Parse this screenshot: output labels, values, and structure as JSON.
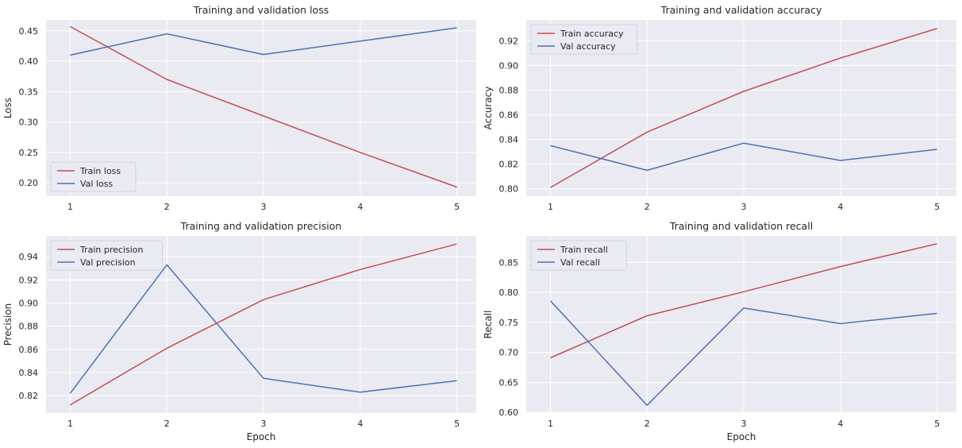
{
  "figure": {
    "colors": {
      "train": "#c44e52",
      "val": "#4c72b0",
      "panel_bg": "#eaeaf2",
      "grid": "#ffffff"
    }
  },
  "chart_data": [
    {
      "type": "line",
      "title": "Training and validation loss",
      "xlabel": "",
      "ylabel": "Loss",
      "x": [
        1,
        2,
        3,
        4,
        5
      ],
      "xticks": [
        "1",
        "2",
        "3",
        "4",
        "5"
      ],
      "yticks": [
        "0.20",
        "0.25",
        "0.30",
        "0.35",
        "0.40",
        "0.45"
      ],
      "ylim": [
        0.178,
        0.468
      ],
      "legend_position": "lower-left",
      "series": [
        {
          "name": "Train loss",
          "color": "#c44e52",
          "values": [
            0.457,
            0.37,
            0.31,
            0.25,
            0.193
          ]
        },
        {
          "name": "Val loss",
          "color": "#4c72b0",
          "values": [
            0.41,
            0.445,
            0.411,
            0.433,
            0.455
          ]
        }
      ]
    },
    {
      "type": "line",
      "title": "Training and validation accuracy",
      "xlabel": "",
      "ylabel": "Accuracy",
      "x": [
        1,
        2,
        3,
        4,
        5
      ],
      "xticks": [
        "1",
        "2",
        "3",
        "4",
        "5"
      ],
      "yticks": [
        "0.80",
        "0.82",
        "0.84",
        "0.86",
        "0.88",
        "0.90",
        "0.92"
      ],
      "ylim": [
        0.794,
        0.937
      ],
      "legend_position": "upper-left",
      "series": [
        {
          "name": "Train accuracy",
          "color": "#c44e52",
          "values": [
            0.801,
            0.846,
            0.879,
            0.906,
            0.93
          ]
        },
        {
          "name": "Val accuracy",
          "color": "#4c72b0",
          "values": [
            0.835,
            0.815,
            0.837,
            0.823,
            0.832
          ]
        }
      ]
    },
    {
      "type": "line",
      "title": "Training and validation precision",
      "xlabel": "Epoch",
      "ylabel": "Precision",
      "x": [
        1,
        2,
        3,
        4,
        5
      ],
      "xticks": [
        "1",
        "2",
        "3",
        "4",
        "5"
      ],
      "yticks": [
        "0.82",
        "0.84",
        "0.86",
        "0.88",
        "0.90",
        "0.92",
        "0.94"
      ],
      "ylim": [
        0.805,
        0.958
      ],
      "legend_position": "upper-left",
      "series": [
        {
          "name": "Train precision",
          "color": "#c44e52",
          "values": [
            0.812,
            0.861,
            0.903,
            0.929,
            0.951
          ]
        },
        {
          "name": "Val precision",
          "color": "#4c72b0",
          "values": [
            0.822,
            0.933,
            0.835,
            0.823,
            0.833
          ]
        }
      ]
    },
    {
      "type": "line",
      "title": "Training and validation recall",
      "xlabel": "Epoch",
      "ylabel": "Recall",
      "x": [
        1,
        2,
        3,
        4,
        5
      ],
      "xticks": [
        "1",
        "2",
        "3",
        "4",
        "5"
      ],
      "yticks": [
        "0.60",
        "0.65",
        "0.70",
        "0.75",
        "0.80",
        "0.85"
      ],
      "ylim": [
        0.599,
        0.894
      ],
      "legend_position": "upper-left",
      "series": [
        {
          "name": "Train recall",
          "color": "#c44e52",
          "values": [
            0.691,
            0.761,
            0.801,
            0.843,
            0.881
          ]
        },
        {
          "name": "Val recall",
          "color": "#4c72b0",
          "values": [
            0.786,
            0.612,
            0.774,
            0.748,
            0.765
          ]
        }
      ]
    }
  ]
}
